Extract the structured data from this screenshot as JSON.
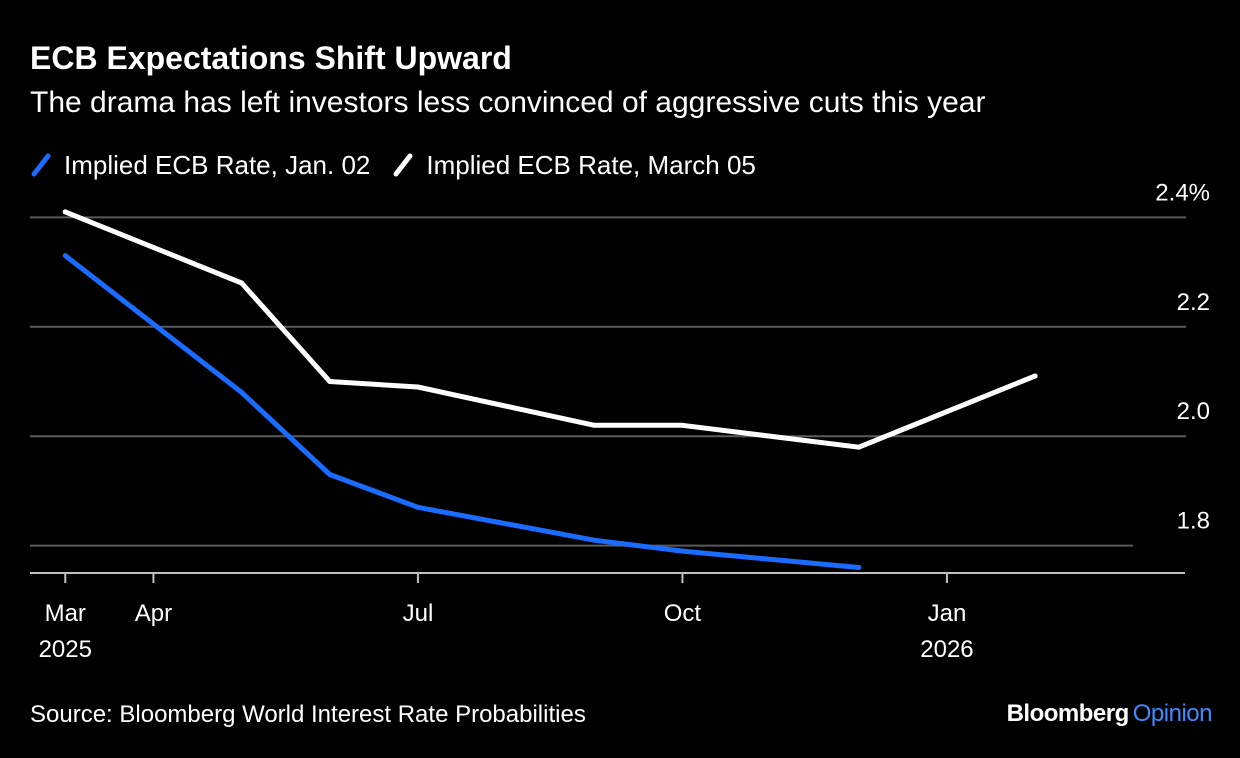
{
  "colors": {
    "background": "#000000",
    "text": "#ffffff",
    "gridline": "#5a5a5a",
    "axis": "#bfbfbf",
    "series_jan": "#1a6bff",
    "series_march": "#ffffff",
    "opinion": "#3d8bff"
  },
  "chart_data": {
    "type": "line",
    "title": "ECB Expectations Shift Upward",
    "subtitle": "The drama has left investors less convinced of aggressive cuts this year",
    "xlabel": "",
    "ylabel": "",
    "ylim": [
      1.75,
      2.45
    ],
    "xlim": [
      -0.4,
      12.7
    ],
    "y_ticks": [
      {
        "value": 2.4,
        "label": "2.4%"
      },
      {
        "value": 2.2,
        "label": "2.2"
      },
      {
        "value": 2.0,
        "label": "2.0"
      },
      {
        "value": 1.8,
        "label": "1.8"
      }
    ],
    "x_ticks": [
      {
        "value": 0,
        "label": "Mar",
        "sublabel": "2025"
      },
      {
        "value": 1,
        "label": "Apr",
        "sublabel": ""
      },
      {
        "value": 4,
        "label": "Jul",
        "sublabel": ""
      },
      {
        "value": 7,
        "label": "Oct",
        "sublabel": ""
      },
      {
        "value": 10,
        "label": "Jan",
        "sublabel": "2026"
      }
    ],
    "grid": true,
    "legend_position": "top-left",
    "series": [
      {
        "name": "Implied ECB Rate, Jan. 02",
        "color_key": "series_jan",
        "x": [
          0,
          2,
          3,
          4,
          6,
          7,
          9
        ],
        "values": [
          2.33,
          2.08,
          1.93,
          1.87,
          1.81,
          1.79,
          1.76
        ]
      },
      {
        "name": "Implied ECB Rate, March 05",
        "color_key": "series_march",
        "x": [
          0,
          2,
          3,
          4,
          6,
          7,
          9,
          11
        ],
        "values": [
          2.41,
          2.28,
          2.1,
          2.09,
          2.02,
          2.02,
          1.98,
          2.11
        ]
      }
    ]
  },
  "footer": {
    "source": "Source: Bloomberg World Interest Rate Probabilities",
    "brand": "Bloomberg",
    "brand_suffix": "Opinion"
  }
}
